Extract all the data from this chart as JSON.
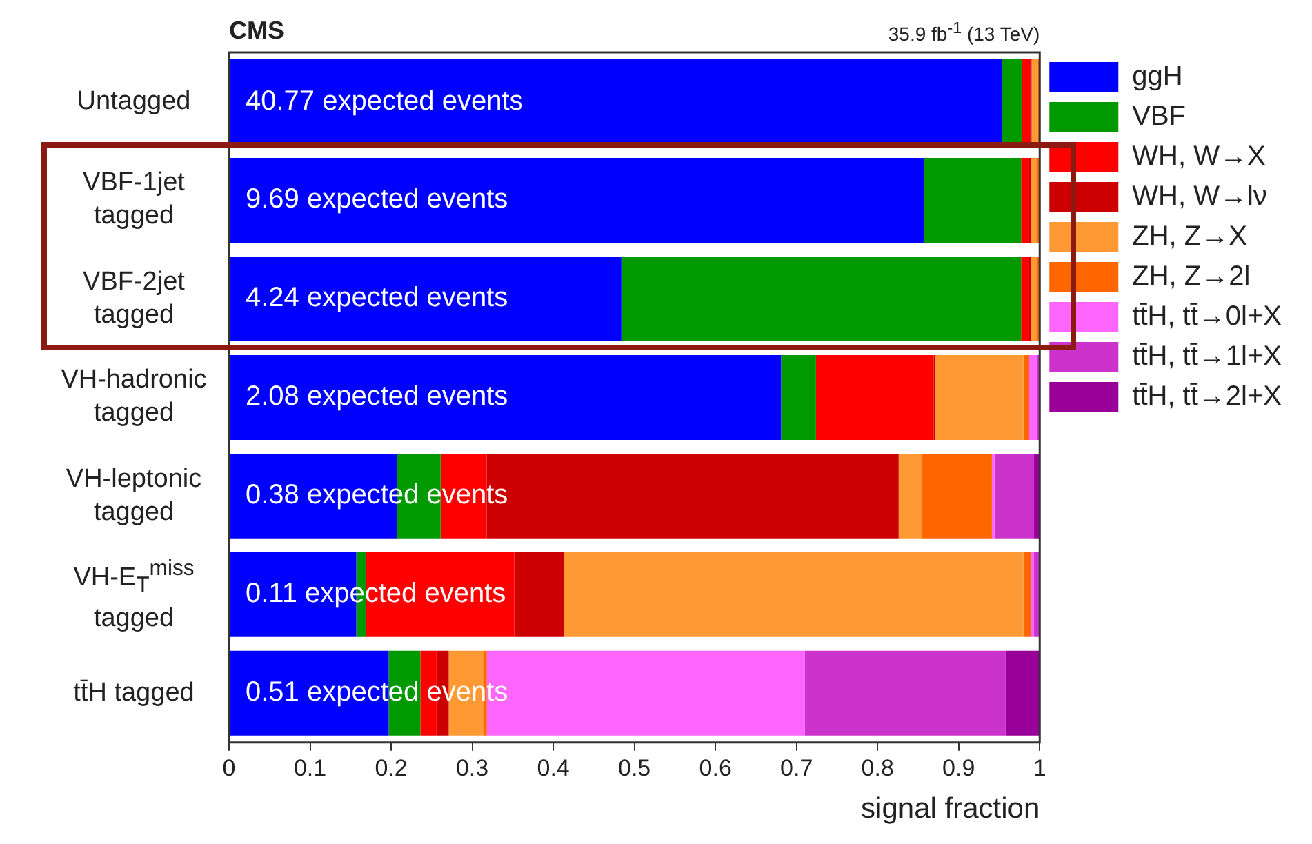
{
  "chart_data": {
    "type": "bar",
    "orientation": "horizontal",
    "stacked": true,
    "title": "CMS",
    "subtitle": "35.9 fb$^{-1}$ (13 TeV)",
    "xlabel": "signal fraction",
    "categories": [
      "Untagged",
      "VBF-1jet tagged",
      "VBF-2jet tagged",
      "VH-hadronic tagged",
      "VH-leptonic tagged",
      "VH-E$_{T}$$^{miss}$ tagged",
      "tt̄H tagged"
    ],
    "series": [
      {
        "name": "ggH",
        "color": "#0000ff",
        "values": [
          0.953,
          0.857,
          0.484,
          0.681,
          0.207,
          0.157,
          0.197
        ]
      },
      {
        "name": "VBF",
        "color": "#009900",
        "values": [
          0.025,
          0.12,
          0.493,
          0.043,
          0.054,
          0.012,
          0.039
        ]
      },
      {
        "name": "WH, W→X",
        "color": "#ff0000",
        "values": [
          0.01,
          0.01,
          0.01,
          0.145,
          0.057,
          0.183,
          0.02
        ]
      },
      {
        "name": "WH, W→lν",
        "color": "#cc0000",
        "values": [
          0.002,
          0.002,
          0.002,
          0.002,
          0.508,
          0.061,
          0.015
        ]
      },
      {
        "name": "ZH, Z→X",
        "color": "#ff9933",
        "values": [
          0.008,
          0.008,
          0.008,
          0.109,
          0.029,
          0.567,
          0.043
        ]
      },
      {
        "name": "ZH, Z→2l",
        "color": "#ff6600",
        "values": [
          0.001,
          0.002,
          0.002,
          0.007,
          0.086,
          0.009,
          0.004
        ]
      },
      {
        "name": "tt̄H, tt̄→0l+X",
        "color": "#ff66ff",
        "values": [
          0.001,
          null,
          null,
          0.01,
          0.003,
          0.004,
          0.392
        ]
      },
      {
        "name": "tt̄H, tt̄→1l+X",
        "color": "#cc33cc",
        "values": [
          0,
          0,
          0,
          0.002,
          0.049,
          0.006,
          0.248
        ]
      },
      {
        "name": "tt̄H, tt̄→2l+X",
        "color": "#990099",
        "values": [
          0,
          0,
          0,
          0.001,
          0.007,
          0.001,
          0.042
        ]
      }
    ],
    "xlim": [
      0,
      1
    ],
    "xticks": [
      0,
      0.1,
      0.2,
      0.3,
      0.4,
      0.5,
      0.6,
      0.7,
      0.8,
      0.9,
      1
    ],
    "grid": false,
    "legend": "right",
    "annotations": [
      {
        "text": "40.77 expected events",
        "y": "Untagged"
      },
      {
        "text": "9.69 expected events",
        "y": "VBF-1jet tagged"
      },
      {
        "text": "4.24 expected events",
        "y": "VBF-2jet tagged"
      },
      {
        "text": "2.08 expected events",
        "y": "VH-hadronic tagged"
      },
      {
        "text": "0.38 expected events",
        "y": "VH-leptonic tagged"
      },
      {
        "text": "0.11 expected events",
        "y": "VH-E$_{T}$$^{miss}$ tagged"
      },
      {
        "text": "0.51 expected events",
        "y": "tt̄H tagged"
      }
    ]
  }
}
